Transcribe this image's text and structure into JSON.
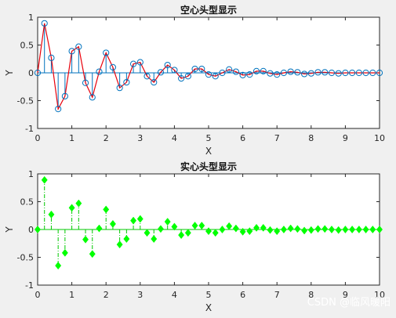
{
  "chart_data": [
    {
      "type": "stem",
      "title": "空心头型显示",
      "xlabel": "X",
      "ylabel": "Y",
      "xlim": [
        0,
        10
      ],
      "ylim": [
        -1,
        1
      ],
      "xticks": [
        "0",
        "1",
        "2",
        "3",
        "4",
        "5",
        "6",
        "7",
        "8",
        "9",
        "10"
      ],
      "yticks": [
        "1",
        "0.5",
        "0",
        "-0.5",
        "-1"
      ],
      "marker": "hollow-circle",
      "stem_color": "#0072bd",
      "line_color": "#e8000b",
      "series": [
        {
          "x": [
            0,
            0.2,
            0.4,
            0.6,
            0.8,
            1.0,
            1.2,
            1.4,
            1.6,
            1.8,
            2.0,
            2.2,
            2.4,
            2.6,
            2.8,
            3.0,
            3.2,
            3.4,
            3.6,
            3.8,
            4.0,
            4.2,
            4.4,
            4.6,
            4.8,
            5.0,
            5.2,
            5.4,
            5.6,
            5.8,
            6.0,
            6.2,
            6.4,
            6.6,
            6.8,
            7.0,
            7.2,
            7.4,
            7.6,
            7.8,
            8.0,
            8.2,
            8.4,
            8.6,
            8.8,
            9.0,
            9.2,
            9.4,
            9.6,
            9.8,
            10.0
          ],
          "y": [
            0,
            0.89,
            0.27,
            -0.65,
            -0.42,
            0.39,
            0.47,
            -0.18,
            -0.44,
            0.02,
            0.36,
            0.1,
            -0.27,
            -0.17,
            0.16,
            0.19,
            -0.06,
            -0.17,
            0.01,
            0.14,
            0.05,
            -0.1,
            -0.06,
            0.07,
            0.07,
            -0.03,
            -0.06,
            0.0,
            0.06,
            0.02,
            -0.04,
            -0.03,
            0.03,
            0.03,
            -0.01,
            -0.03,
            0.0,
            0.02,
            0.01,
            -0.02,
            -0.01,
            0.01,
            0.01,
            0.0,
            -0.01,
            0.0,
            0.0,
            0.0,
            0.0,
            0.0,
            0.0
          ]
        }
      ]
    },
    {
      "type": "stem",
      "title": "实心头型显示",
      "xlabel": "X",
      "ylabel": "Y",
      "xlim": [
        0,
        10
      ],
      "ylim": [
        -1,
        1
      ],
      "xticks": [
        "0",
        "1",
        "2",
        "3",
        "4",
        "5",
        "6",
        "7",
        "8",
        "9",
        "10"
      ],
      "yticks": [
        "1",
        "0.5",
        "0",
        "-0.5",
        "-1"
      ],
      "marker": "filled-diamond",
      "stem_color": "#00c800",
      "stem_style": "dash-dot",
      "marker_color": "#00ff00",
      "series": [
        {
          "x": [
            0,
            0.2,
            0.4,
            0.6,
            0.8,
            1.0,
            1.2,
            1.4,
            1.6,
            1.8,
            2.0,
            2.2,
            2.4,
            2.6,
            2.8,
            3.0,
            3.2,
            3.4,
            3.6,
            3.8,
            4.0,
            4.2,
            4.4,
            4.6,
            4.8,
            5.0,
            5.2,
            5.4,
            5.6,
            5.8,
            6.0,
            6.2,
            6.4,
            6.6,
            6.8,
            7.0,
            7.2,
            7.4,
            7.6,
            7.8,
            8.0,
            8.2,
            8.4,
            8.6,
            8.8,
            9.0,
            9.2,
            9.4,
            9.6,
            9.8,
            10.0
          ],
          "y": [
            0,
            0.89,
            0.27,
            -0.65,
            -0.42,
            0.39,
            0.47,
            -0.18,
            -0.44,
            0.02,
            0.36,
            0.1,
            -0.27,
            -0.17,
            0.16,
            0.19,
            -0.06,
            -0.17,
            0.01,
            0.14,
            0.05,
            -0.1,
            -0.06,
            0.07,
            0.07,
            -0.03,
            -0.06,
            0.0,
            0.06,
            0.02,
            -0.04,
            -0.03,
            0.03,
            0.03,
            -0.01,
            -0.03,
            0.0,
            0.02,
            0.01,
            -0.02,
            -0.01,
            0.01,
            0.01,
            0.0,
            -0.01,
            0.0,
            0.0,
            0.0,
            0.0,
            0.0,
            0.0
          ]
        }
      ]
    }
  ],
  "watermark": "CSDN @临风暖阳"
}
